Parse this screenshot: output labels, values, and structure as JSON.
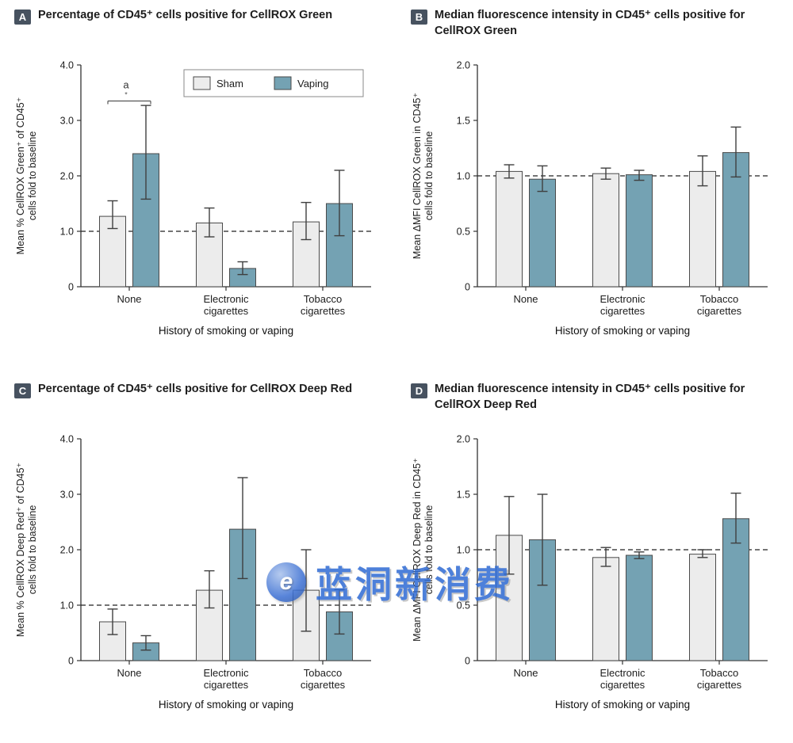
{
  "colors": {
    "sham_fill": "#ececec",
    "vaping_fill": "#74a2b3",
    "bar_stroke": "#4a4a4a",
    "axis": "#333333",
    "error_bar": "#3f3f3f",
    "panel_label_bg": "#475260",
    "dashed_line": "#222222",
    "legend_border": "#8a8a8a",
    "watermark_blue": "#2f6bd4"
  },
  "watermark": {
    "logo_letter": "e",
    "text": "蓝洞新消费"
  },
  "chart_data": [
    {
      "type": "bar",
      "panel_label": "A",
      "title": "Percentage of CD45⁺ cells positive for CellROX Green",
      "ylabel_lines": [
        "Mean % CellROX Green⁺ of CD45⁺",
        "cells fold to baseline"
      ],
      "xlabel": "History of smoking or vaping",
      "ylim": [
        0,
        4
      ],
      "yticks": [
        0,
        1,
        2,
        3,
        4
      ],
      "ytick_labels": [
        "0",
        "1.0",
        "2.0",
        "3.0",
        "4.0"
      ],
      "dashed_line": 1.0,
      "categories": [
        [
          "None"
        ],
        [
          "Electronic",
          "cigarettes"
        ],
        [
          "Tobacco",
          "cigarettes"
        ]
      ],
      "series": [
        {
          "name": "Sham",
          "values": [
            1.27,
            1.15,
            1.17
          ],
          "ci": [
            [
              1.05,
              1.55
            ],
            [
              0.9,
              1.42
            ],
            [
              0.85,
              1.52
            ]
          ]
        },
        {
          "name": "Vaping",
          "values": [
            2.4,
            0.33,
            1.5
          ],
          "ci": [
            [
              1.58,
              3.27
            ],
            [
              0.22,
              0.45
            ],
            [
              0.92,
              2.1
            ]
          ]
        }
      ],
      "legend": true,
      "legend_entries": [
        "Sham",
        "Vaping"
      ],
      "annotation": {
        "text": "a",
        "category_index": 0,
        "y": 3.35
      }
    },
    {
      "type": "bar",
      "panel_label": "B",
      "title": "Median fluorescence intensity in CD45⁺ cells positive for CellROX Green",
      "ylabel_lines": [
        "Mean ΔMFI CellROX Green in CD45⁺",
        "cells fold to baseline"
      ],
      "xlabel": "History of smoking or vaping",
      "ylim": [
        0,
        2
      ],
      "yticks": [
        0,
        0.5,
        1.0,
        1.5,
        2.0
      ],
      "ytick_labels": [
        "0",
        "0.5",
        "1.0",
        "1.5",
        "2.0"
      ],
      "dashed_line": 1.0,
      "categories": [
        [
          "None"
        ],
        [
          "Electronic",
          "cigarettes"
        ],
        [
          "Tobacco",
          "cigarettes"
        ]
      ],
      "series": [
        {
          "name": "Sham",
          "values": [
            1.04,
            1.02,
            1.04
          ],
          "ci": [
            [
              0.98,
              1.1
            ],
            [
              0.97,
              1.07
            ],
            [
              0.91,
              1.18
            ]
          ]
        },
        {
          "name": "Vaping",
          "values": [
            0.97,
            1.01,
            1.21
          ],
          "ci": [
            [
              0.86,
              1.09
            ],
            [
              0.96,
              1.05
            ],
            [
              0.99,
              1.44
            ]
          ]
        }
      ],
      "legend": false
    },
    {
      "type": "bar",
      "panel_label": "C",
      "title": "Percentage of CD45⁺ cells positive for CellROX Deep Red",
      "ylabel_lines": [
        "Mean % CellROX Deep Red⁺ of CD45⁺",
        "cells fold to baseline"
      ],
      "xlabel": "History of smoking or vaping",
      "ylim": [
        0,
        4
      ],
      "yticks": [
        0,
        1,
        2,
        3,
        4
      ],
      "ytick_labels": [
        "0",
        "1.0",
        "2.0",
        "3.0",
        "4.0"
      ],
      "dashed_line": 1.0,
      "categories": [
        [
          "None"
        ],
        [
          "Electronic",
          "cigarettes"
        ],
        [
          "Tobacco",
          "cigarettes"
        ]
      ],
      "series": [
        {
          "name": "Sham",
          "values": [
            0.7,
            1.27,
            1.27
          ],
          "ci": [
            [
              0.47,
              0.93
            ],
            [
              0.95,
              1.62
            ],
            [
              0.53,
              2.0
            ]
          ]
        },
        {
          "name": "Vaping",
          "values": [
            0.32,
            2.37,
            0.88
          ],
          "ci": [
            [
              0.19,
              0.45
            ],
            [
              1.48,
              3.3
            ],
            [
              0.48,
              1.28
            ]
          ]
        }
      ],
      "legend": false
    },
    {
      "type": "bar",
      "panel_label": "D",
      "title": "Median fluorescence intensity in CD45⁺ cells positive for CellROX Deep Red",
      "ylabel_lines": [
        "Mean ΔMFI CellROX Deep Red in CD45⁺",
        "cells fold to baseline"
      ],
      "xlabel": "History of smoking or vaping",
      "ylim": [
        0,
        2
      ],
      "yticks": [
        0,
        0.5,
        1.0,
        1.5,
        2.0
      ],
      "ytick_labels": [
        "0",
        "0.5",
        "1.0",
        "1.5",
        "2.0"
      ],
      "dashed_line": 1.0,
      "categories": [
        [
          "None"
        ],
        [
          "Electronic",
          "cigarettes"
        ],
        [
          "Tobacco",
          "cigarettes"
        ]
      ],
      "series": [
        {
          "name": "Sham",
          "values": [
            1.13,
            0.93,
            0.96
          ],
          "ci": [
            [
              0.78,
              1.48
            ],
            [
              0.85,
              1.02
            ],
            [
              0.93,
              1.0
            ]
          ]
        },
        {
          "name": "Vaping",
          "values": [
            1.09,
            0.95,
            1.28
          ],
          "ci": [
            [
              0.68,
              1.5
            ],
            [
              0.92,
              0.98
            ],
            [
              1.06,
              1.51
            ]
          ]
        }
      ],
      "legend": false
    }
  ]
}
